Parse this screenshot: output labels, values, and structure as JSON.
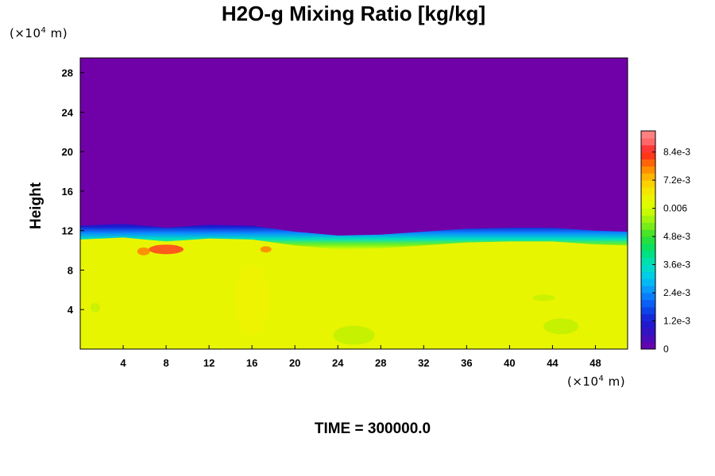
{
  "chart_data": {
    "type": "heatmap",
    "title": "H2O-g Mixing Ratio [kg/kg]",
    "ylabel": "Height",
    "x_unit_parts": [
      "(×10",
      "4",
      " m)"
    ],
    "y_unit_parts": [
      "(×10",
      "4",
      " m)"
    ],
    "xlim": [
      0,
      51
    ],
    "ylim": [
      0,
      29.5
    ],
    "x_ticks": [
      4,
      8,
      12,
      16,
      20,
      24,
      28,
      32,
      36,
      40,
      44,
      48
    ],
    "y_ticks": [
      4,
      8,
      12,
      16,
      20,
      24,
      28
    ],
    "colorbar": {
      "range": [
        0,
        0.0093
      ],
      "tick_values": [
        0,
        0.0012,
        0.0024,
        0.0036,
        0.0048,
        0.006,
        0.0072,
        0.0084
      ],
      "tick_labels": [
        "0",
        "1.2e-3",
        "2.4e-3",
        "3.6e-3",
        "4.8e-3",
        "0.006",
        "7.2e-3",
        "8.4e-3"
      ]
    },
    "field_summary": {
      "upper_layer_value": 0,
      "lower_layer_value": 0.0064,
      "interface_height_x": [
        0,
        4,
        8,
        12,
        16,
        20,
        24,
        28,
        32,
        36,
        40,
        44,
        48,
        51
      ],
      "interface_height_y": [
        11.8,
        12.0,
        11.6,
        11.9,
        11.8,
        11.2,
        10.8,
        10.9,
        11.2,
        11.5,
        11.6,
        11.6,
        11.3,
        11.2
      ]
    },
    "annotation": "TIME = 300000.0"
  }
}
